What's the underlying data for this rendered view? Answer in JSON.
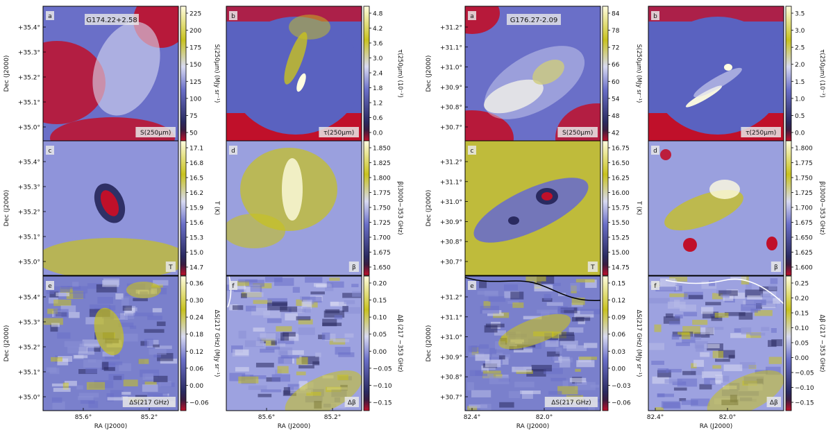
{
  "figure": {
    "left_block": {
      "title": "G174.22+2.58",
      "ra_label": "RA (J2000)",
      "dec_label": "Dec (J2000)"
    },
    "right_block": {
      "title": "G176.27-2.09",
      "ra_label": "RA (J2000)",
      "dec_label": "Dec (J2000)"
    }
  },
  "chart_data": [
    {
      "type": "heatmap",
      "block": "G174.22+2.58",
      "panel": "a",
      "title": "G174.22+2.58",
      "inset_label": "S(250μm)",
      "cbar_label": "S(250μm) (MJy sr⁻¹)",
      "cbar_ticks": [
        "225",
        "200",
        "175",
        "150",
        "125",
        "100",
        "75",
        "50"
      ],
      "xlabel": "",
      "ylabel": "Dec (J2000)",
      "y_ticks": [
        "+35.4°",
        "+35.3°",
        "+35.2°",
        "+35.1°",
        "+35.0°"
      ],
      "x_ticks": []
    },
    {
      "type": "heatmap",
      "block": "G174.22+2.58",
      "panel": "b",
      "inset_label": "τ(250μm)",
      "cbar_label": "τ(250μm) (10⁻³)",
      "cbar_ticks": [
        "4.8",
        "4.2",
        "3.6",
        "3.0",
        "2.4",
        "1.8",
        "1.2",
        "0.6",
        "0.0"
      ],
      "xlabel": "",
      "ylabel": "",
      "y_ticks": [],
      "x_ticks": []
    },
    {
      "type": "heatmap",
      "block": "G174.22+2.58",
      "panel": "c",
      "inset_label": "T",
      "cbar_label": "T (K)",
      "cbar_ticks": [
        "17.1",
        "16.8",
        "16.5",
        "16.2",
        "15.9",
        "15.6",
        "15.3",
        "15.0",
        "14.7"
      ],
      "xlabel": "",
      "ylabel": "Dec (J2000)",
      "y_ticks": [
        "+35.4°",
        "+35.3°",
        "+35.2°",
        "+35.1°",
        "+35.0°"
      ],
      "x_ticks": []
    },
    {
      "type": "heatmap",
      "block": "G174.22+2.58",
      "panel": "d",
      "inset_label": "β",
      "cbar_label": "β(3000−353 GHz)",
      "cbar_ticks": [
        "1.850",
        "1.825",
        "1.800",
        "1.775",
        "1.750",
        "1.725",
        "1.700",
        "1.675",
        "1.650"
      ],
      "xlabel": "",
      "ylabel": "",
      "y_ticks": [],
      "x_ticks": []
    },
    {
      "type": "heatmap",
      "block": "G174.22+2.58",
      "panel": "e",
      "inset_label": "ΔS(217 GHz)",
      "cbar_label": "ΔS(217 GHz) (MJy sr⁻¹)",
      "cbar_ticks": [
        "0.36",
        "0.30",
        "0.24",
        "0.18",
        "0.12",
        "0.06",
        "0.00",
        "−0.06"
      ],
      "xlabel": "RA (J2000)",
      "ylabel": "Dec (J2000)",
      "y_ticks": [
        "+35.4°",
        "+35.3°",
        "+35.2°",
        "+35.1°",
        "+35.0°"
      ],
      "x_ticks": [
        "85.6°",
        "85.2°"
      ]
    },
    {
      "type": "heatmap",
      "block": "G174.22+2.58",
      "panel": "f",
      "inset_label": "Δβ",
      "cbar_label": "Δβ (217 −353 GHz)",
      "cbar_ticks": [
        "0.20",
        "0.15",
        "0.10",
        "0.05",
        "0.00",
        "−0.05",
        "−0.10",
        "−0.15"
      ],
      "xlabel": "RA (J2000)",
      "ylabel": "",
      "y_ticks": [],
      "x_ticks": [
        "85.6°",
        "85.2°"
      ]
    },
    {
      "type": "heatmap",
      "block": "G176.27-2.09",
      "panel": "a",
      "title": "G176.27-2.09",
      "inset_label": "S(250μm)",
      "cbar_label": "S(250μm) (MJy sr⁻¹)",
      "cbar_ticks": [
        "84",
        "78",
        "72",
        "66",
        "60",
        "54",
        "48",
        "42"
      ],
      "xlabel": "",
      "ylabel": "Dec (J2000)",
      "y_ticks": [
        "+31.2°",
        "+31.1°",
        "+31.0°",
        "+30.9°",
        "+30.8°",
        "+30.7°"
      ],
      "x_ticks": []
    },
    {
      "type": "heatmap",
      "block": "G176.27-2.09",
      "panel": "b",
      "inset_label": "τ(250μm)",
      "cbar_label": "τ(250μm) (10⁻³)",
      "cbar_ticks": [
        "3.5",
        "3.0",
        "2.5",
        "2.0",
        "1.5",
        "1.0",
        "0.5",
        "0.0"
      ],
      "xlabel": "",
      "ylabel": "",
      "y_ticks": [],
      "x_ticks": []
    },
    {
      "type": "heatmap",
      "block": "G176.27-2.09",
      "panel": "c",
      "inset_label": "T",
      "cbar_label": "T (K)",
      "cbar_ticks": [
        "16.75",
        "16.50",
        "16.25",
        "16.00",
        "15.75",
        "15.50",
        "15.25",
        "15.00",
        "14.75"
      ],
      "xlabel": "",
      "ylabel": "Dec (J2000)",
      "y_ticks": [
        "+31.2°",
        "+31.1°",
        "+31.0°",
        "+30.9°",
        "+30.8°",
        "+30.7°"
      ],
      "x_ticks": []
    },
    {
      "type": "heatmap",
      "block": "G176.27-2.09",
      "panel": "d",
      "inset_label": "β",
      "cbar_label": "β(3000−353 GHz)",
      "cbar_ticks": [
        "1.800",
        "1.775",
        "1.750",
        "1.725",
        "1.700",
        "1.675",
        "1.650",
        "1.625",
        "1.600"
      ],
      "xlabel": "",
      "ylabel": "",
      "y_ticks": [],
      "x_ticks": []
    },
    {
      "type": "heatmap",
      "block": "G176.27-2.09",
      "panel": "e",
      "inset_label": "ΔS(217 GHz)",
      "cbar_label": "ΔS(217 GHz) (MJy sr⁻¹)",
      "cbar_ticks": [
        "0.15",
        "0.12",
        "0.09",
        "0.06",
        "0.03",
        "0.00",
        "−0.03",
        "−0.06"
      ],
      "xlabel": "RA (J2000)",
      "ylabel": "Dec (J2000)",
      "y_ticks": [
        "+31.2°",
        "+31.1°",
        "+31.0°",
        "+30.9°",
        "+30.8°",
        "+30.7°"
      ],
      "x_ticks": [
        "82.4°",
        "82.0°"
      ]
    },
    {
      "type": "heatmap",
      "block": "G176.27-2.09",
      "panel": "f",
      "inset_label": "Δβ",
      "cbar_label": "Δβ (217 −353 GHz)",
      "cbar_ticks": [
        "0.25",
        "0.20",
        "0.15",
        "0.10",
        "0.05",
        "0.00",
        "−0.05",
        "−0.10",
        "−0.15"
      ],
      "xlabel": "RA (J2000)",
      "ylabel": "",
      "y_ticks": [],
      "x_ticks": [
        "82.4°",
        "82.0°"
      ]
    }
  ],
  "colors": {
    "low": "#c0102a",
    "dark": "#2a2a60",
    "mid": "#6a6fc8",
    "pale": "#d8daf2",
    "high": "#c8c21e",
    "top": "#fffde0"
  }
}
